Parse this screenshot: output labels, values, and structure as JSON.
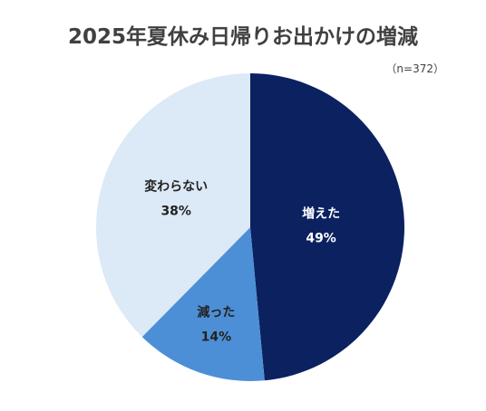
{
  "chart_data": {
    "type": "pie",
    "title": "2025年夏休み日帰りお出かけの増減",
    "note": "（n=372）",
    "slices": [
      {
        "label": "増えた",
        "value": 49,
        "value_label": "49%",
        "color": "#0b2160",
        "text_color": "#ffffff"
      },
      {
        "label": "減った",
        "value": 14,
        "value_label": "14%",
        "color": "#4d8fd6",
        "text_color": "#222222"
      },
      {
        "label": "変わらない",
        "value": 38,
        "value_label": "38%",
        "color": "#dce9f6",
        "text_color": "#222222"
      }
    ],
    "start_angle": "12 o'clock",
    "direction": "clockwise"
  }
}
